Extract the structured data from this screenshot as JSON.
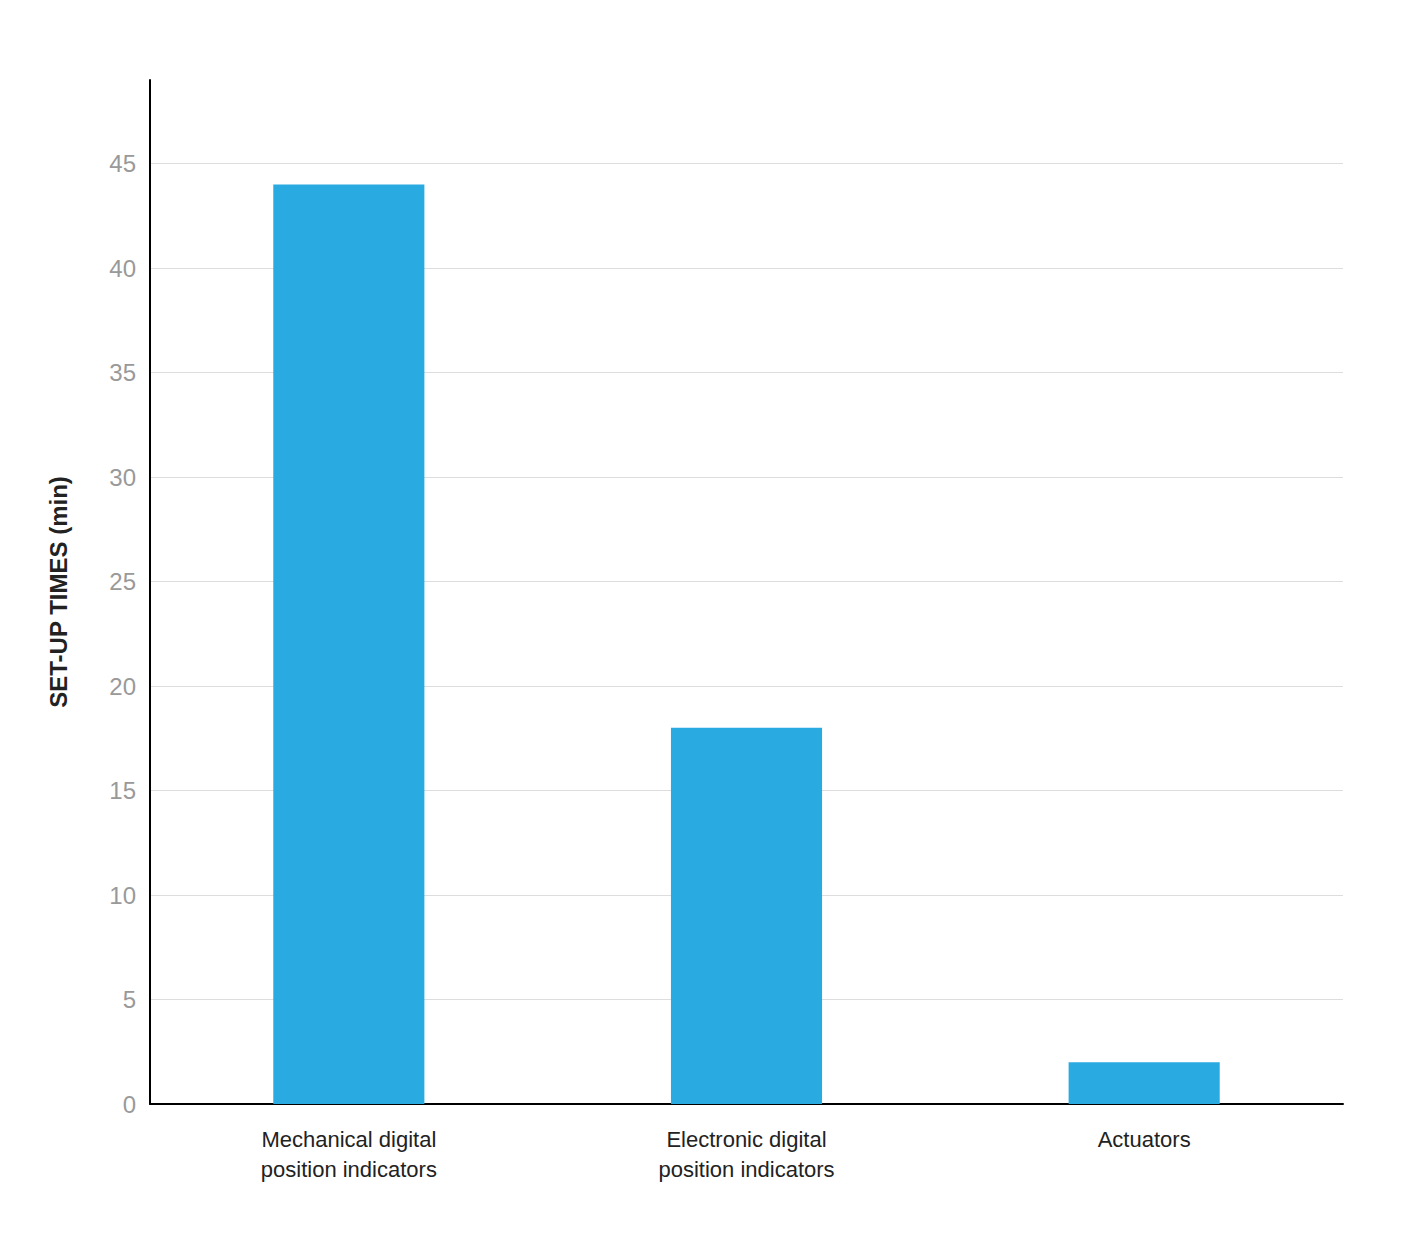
{
  "chart_data": {
    "type": "bar",
    "categories": [
      "Mechanical digital\nposition indicators",
      "Electronic digital\nposition indicators",
      "Actuators"
    ],
    "values": [
      44,
      18,
      2
    ],
    "color": "#29ABE2",
    "ylabel": "SET-UP TIMES (min)",
    "ylim": [
      0,
      49
    ],
    "yticks": [
      0,
      5,
      10,
      15,
      20,
      25,
      30,
      35,
      40,
      45
    ],
    "grid": true
  }
}
